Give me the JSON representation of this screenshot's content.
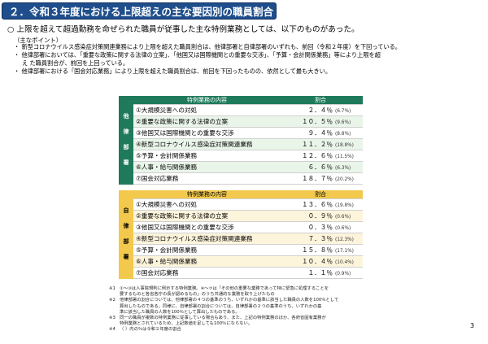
{
  "title": "２．令和３年度における上限超えの主な要因別の職員割合",
  "headline": "○ 上限を超えて超過勤務を命ぜられた職員が従事した主な特例業務としては、以下のものがあった。",
  "points_label": "（主なポイント）",
  "points": [
    "・ 新型コロナウイルス感染症対策関連業務により上限を超えた職員割合は、他律部署と自律部署のいずれも、前回（令和２年度）を下回っている。",
    "・ 他律部署においては、「重要な政策に関する法律の立案」、「他国又は国際機関との重要な交渉」、「予算・会計関係業務」等により上限を超",
    "え た職員割合が、前回を上回っている。",
    "・ 他律部署における「国会対応業務」により上限を超えた職員割合は、前回を下回ったものの、依然として最も大きい。"
  ],
  "table_tariku": {
    "side_label": "他律部署",
    "header_task": "特例業務の内容",
    "header_rate": "割合",
    "rows": [
      {
        "task": "①大規模災害への対処",
        "rate": "２．４％",
        "prev": "(6.7%)"
      },
      {
        "task": "②重要な政策に関する法律の立案",
        "rate": "１０．５％",
        "prev": "(9.6%)"
      },
      {
        "task": "③他国又は国際機関との重要な交渉",
        "rate": "９．４％",
        "prev": "(8.8%)"
      },
      {
        "task": "④新型コロナウイルス感染症対策関連業務",
        "rate": "１１．２％",
        "prev": "(18.8%)"
      },
      {
        "task": "⑤予算・会計関係業務",
        "rate": "１２．６％",
        "prev": "(11.5%)"
      },
      {
        "task": "⑥人事・給与関係業務",
        "rate": "６．６％",
        "prev": "(6.3%)"
      },
      {
        "task": "⑦国会対応業務",
        "rate": "１８．７％",
        "prev": "(20.2%)"
      }
    ]
  },
  "table_jiritsu": {
    "side_label": "自律部署",
    "header_task": "特例業務の内容",
    "header_rate": "割合",
    "rows": [
      {
        "task": "①大規模災害への対処",
        "rate": "１３．６％",
        "prev": "(19.8%)"
      },
      {
        "task": "②重要な政策に関する法律の立案",
        "rate": "０．９％",
        "prev": "(0.6%)"
      },
      {
        "task": "③他国又は国際機関との重要な交渉",
        "rate": "０．３％",
        "prev": "(0.6%)"
      },
      {
        "task": "④新型コロナウイルス感染症対策関連業務",
        "rate": "７．３％",
        "prev": "(12.3%)"
      },
      {
        "task": "⑤予算・会計関係業務",
        "rate": "１５．８％",
        "prev": "(17.1%)"
      },
      {
        "task": "⑥人事・給与関係業務",
        "rate": "１０．４％",
        "prev": "(10.4%)"
      },
      {
        "task": "⑦国会対応業務",
        "rate": "１．１％",
        "prev": "(0.9%)"
      }
    ]
  },
  "footnotes": [
    {
      "mark": "※1",
      "lines": [
        "①～③は人事院規則に例示する特例業務。④～⑦は「その他の重要な業務であって特に緊急に処理することを",
        "要するものと各省各庁の長が認めるもの」のうち共通的な業務を取り上げたもの"
      ]
    },
    {
      "mark": "※2",
      "lines": [
        "他律部署の割合については、他律部署の４つの基準のうち、いずれかの基準に該当した職員の人数を100％として",
        "算出したものである。同様に、自律部署の割合については、自律部署の２つの基準のうち、いずれかの基",
        "準に該当した職員の人数を100％として算出したものである。"
      ]
    },
    {
      "mark": "※3",
      "lines": [
        "同一の職員が複数の特例業務に従事している場合もあり、また、上記の特例業務のほか、各府省固有業務が",
        "特例業務とされているため、上記数値を足しても100％にならない。"
      ]
    },
    {
      "mark": "※4",
      "lines": [
        "（ ）内の％は令和２年度の割合"
      ]
    }
  ],
  "page_number": "3"
}
